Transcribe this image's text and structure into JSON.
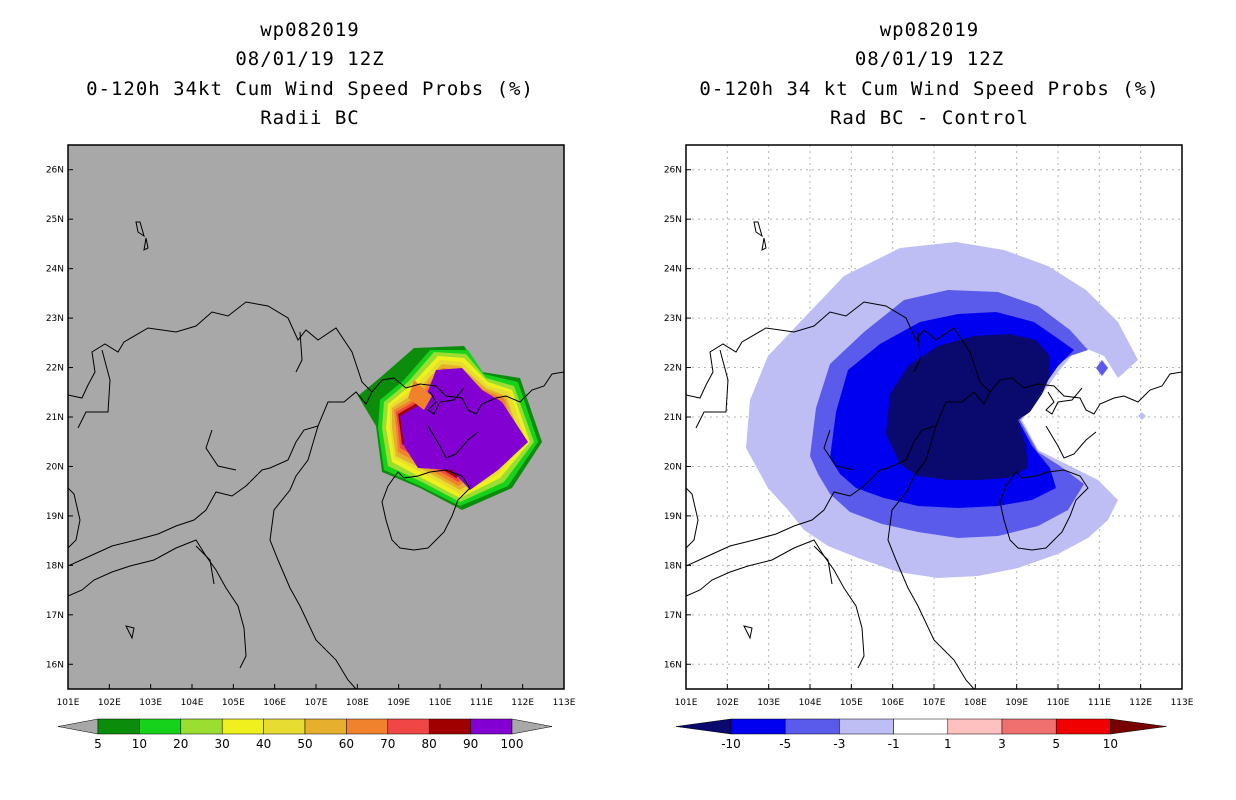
{
  "chart_data": [
    {
      "type": "contour-map",
      "title_lines": [
        "wp082019",
        "08/01/19 12Z",
        "0-120h 34kt Cum Wind Speed Probs (%)",
        "Radii BC"
      ],
      "lon_range": [
        101,
        113
      ],
      "lat_range": [
        15.5,
        26.5
      ],
      "x_ticks": [
        "101E",
        "102E",
        "103E",
        "104E",
        "105E",
        "106E",
        "107E",
        "108E",
        "109E",
        "110E",
        "111E",
        "112E",
        "113E"
      ],
      "y_ticks": [
        "16N",
        "17N",
        "18N",
        "19N",
        "20N",
        "21N",
        "22N",
        "23N",
        "24N",
        "25N",
        "26N"
      ],
      "colorbar_labels": [
        "5",
        "10",
        "20",
        "30",
        "40",
        "50",
        "60",
        "70",
        "80",
        "90",
        "100"
      ],
      "colorbar_colors": [
        "#0b8c0b",
        "#17d21a",
        "#9ade32",
        "#f0f01e",
        "#e6dc32",
        "#e6af2d",
        "#f0822d",
        "#f04646",
        "#a00000",
        "#8200d2"
      ],
      "background_color": "#a8a8a8",
      "max_probability_percent": 100,
      "storm_center": {
        "lon": 110.5,
        "lat": 20.9
      }
    },
    {
      "type": "contour-map",
      "title_lines": [
        "wp082019",
        "08/01/19 12Z",
        "0-120h 34 kt Cum Wind Speed Probs (%)",
        "Rad BC - Control"
      ],
      "lon_range": [
        101,
        113
      ],
      "lat_range": [
        15.5,
        26.5
      ],
      "x_ticks": [
        "101E",
        "102E",
        "103E",
        "104E",
        "105E",
        "106E",
        "107E",
        "108E",
        "109E",
        "110E",
        "111E",
        "112E",
        "113E"
      ],
      "y_ticks": [
        "16N",
        "17N",
        "18N",
        "19N",
        "20N",
        "21N",
        "22N",
        "23N",
        "24N",
        "25N",
        "26N"
      ],
      "colorbar_labels": [
        "-10",
        "-5",
        "-3",
        "-1",
        "1",
        "3",
        "5",
        "10"
      ],
      "colorbar_colors": [
        "#0a0a6e",
        "#0000f0",
        "#5a5aeb",
        "#bebef5",
        "#ffffff",
        "#ffc0c0",
        "#f07070",
        "#f00000",
        "#780000"
      ],
      "min_difference_percent": -10,
      "storm_center": {
        "lon": 107.6,
        "lat": 21.0
      }
    }
  ]
}
